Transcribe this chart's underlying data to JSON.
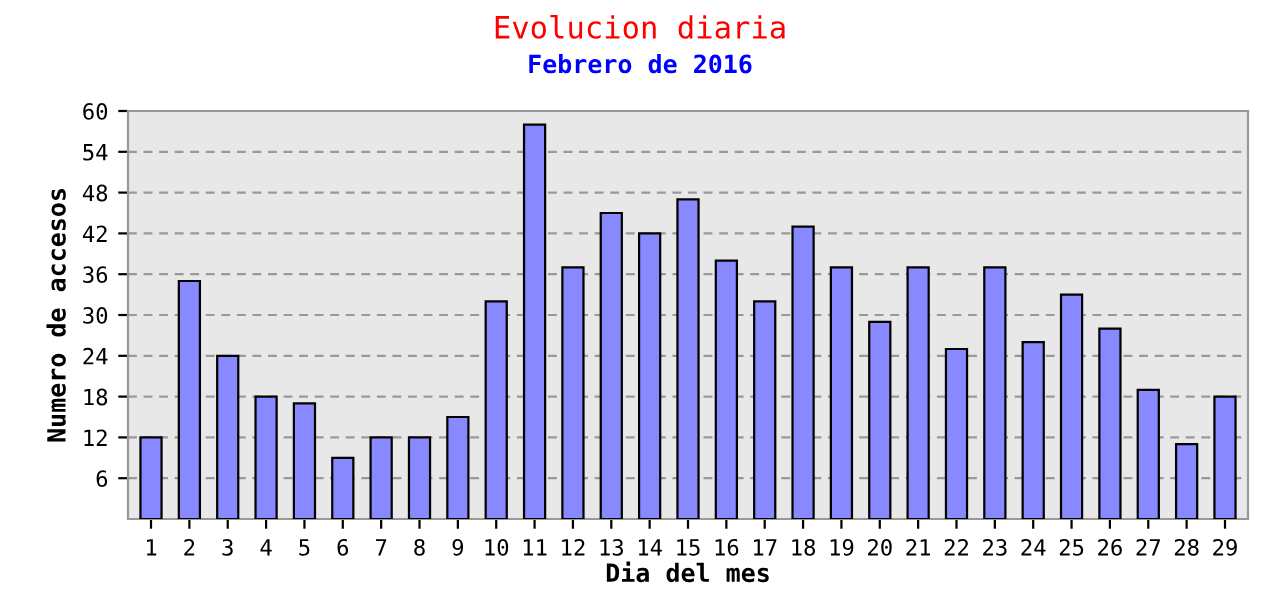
{
  "chart_data": {
    "type": "bar",
    "title": "Evolucion diaria",
    "subtitle": "Febrero de 2016",
    "xlabel": "Dia del mes",
    "ylabel": "Numero de accesos",
    "categories": [
      "1",
      "2",
      "3",
      "4",
      "5",
      "6",
      "7",
      "8",
      "9",
      "10",
      "11",
      "12",
      "13",
      "14",
      "15",
      "16",
      "17",
      "18",
      "19",
      "20",
      "21",
      "22",
      "23",
      "24",
      "25",
      "26",
      "27",
      "28",
      "29"
    ],
    "values": [
      12,
      35,
      24,
      18,
      17,
      9,
      12,
      12,
      15,
      32,
      58,
      37,
      45,
      42,
      47,
      38,
      32,
      43,
      37,
      29,
      37,
      25,
      37,
      26,
      33,
      28,
      19,
      11,
      18
    ],
    "color": "#8888ff",
    "ylim": [
      0,
      60
    ],
    "yticks": [
      6,
      12,
      18,
      24,
      30,
      36,
      42,
      48,
      54,
      60
    ],
    "grid": "y"
  }
}
